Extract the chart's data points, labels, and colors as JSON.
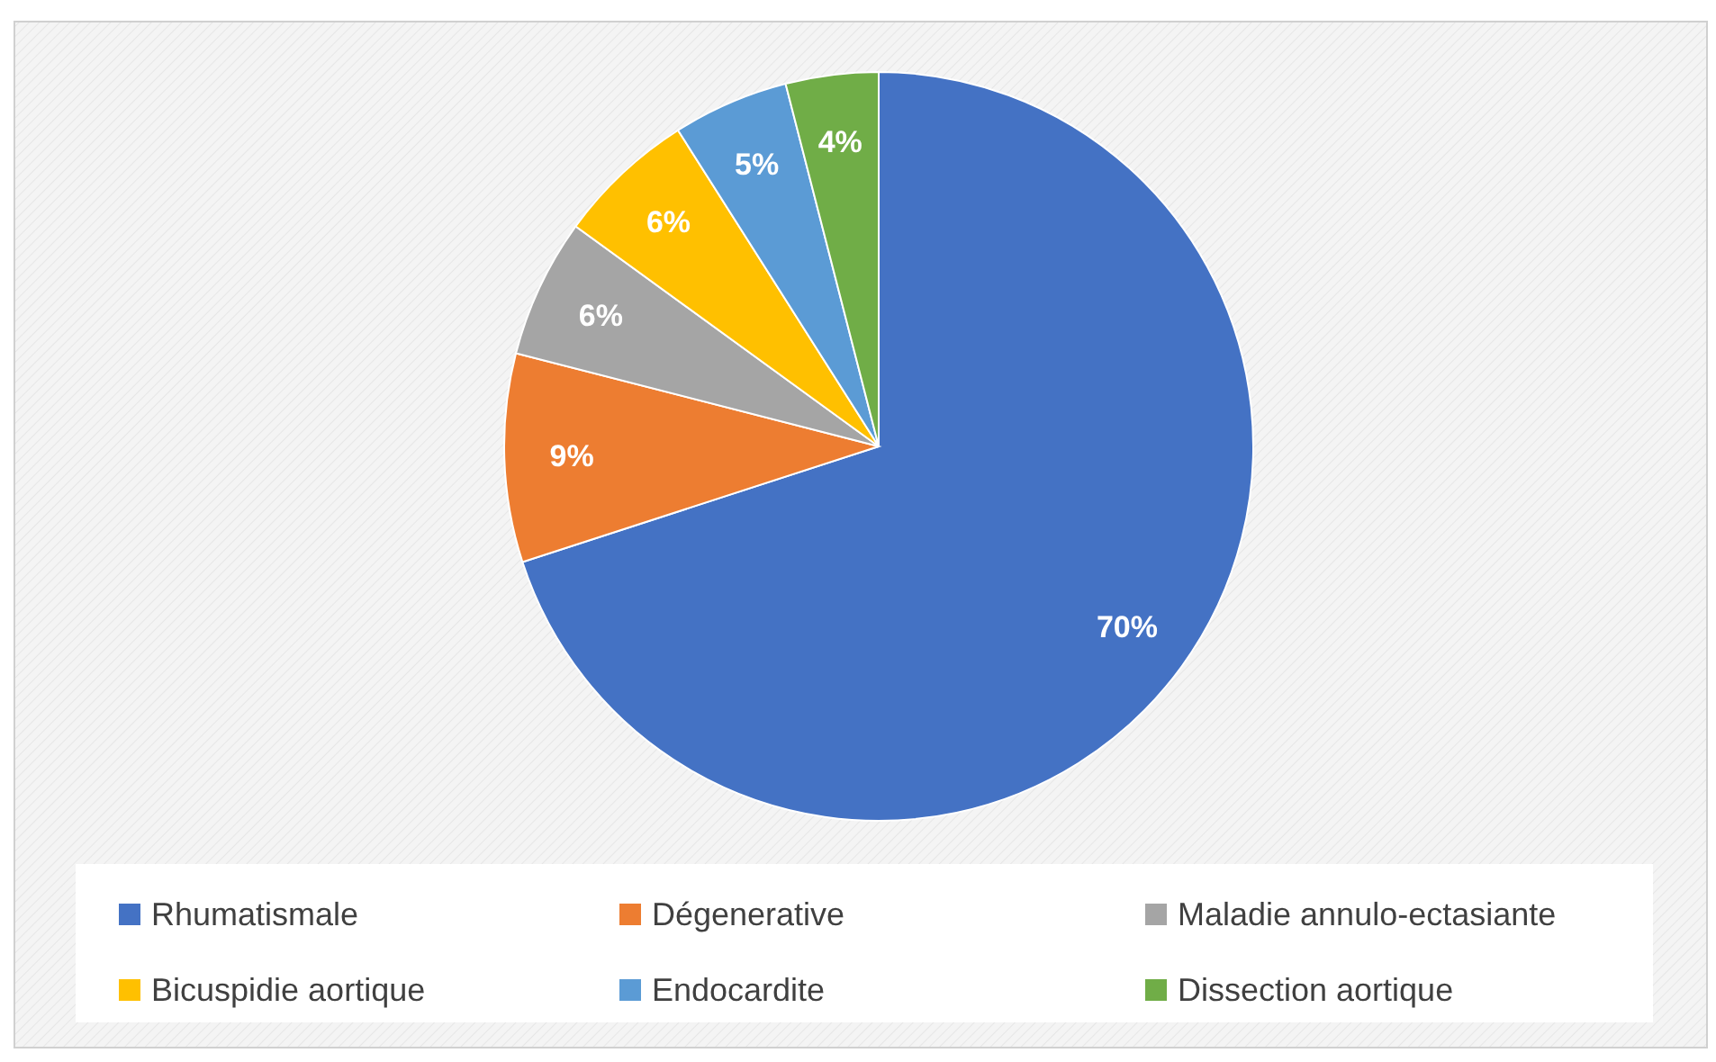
{
  "chart_data": {
    "type": "pie",
    "categories": [
      "Rhumatismale",
      "Dégenerative",
      "Maladie annulo-ectasiante",
      "Bicuspidie aortique",
      "Endocardite",
      "Dissection aortique"
    ],
    "values": [
      70,
      9,
      6,
      6,
      5,
      4
    ],
    "colors": [
      "#4472c4",
      "#ed7d31",
      "#a5a5a5",
      "#ffc000",
      "#5b9bd5",
      "#70ad47"
    ],
    "value_labels": [
      "70%",
      "9%",
      "6%",
      "6%",
      "5%",
      "4%"
    ],
    "legend": "bottom"
  }
}
